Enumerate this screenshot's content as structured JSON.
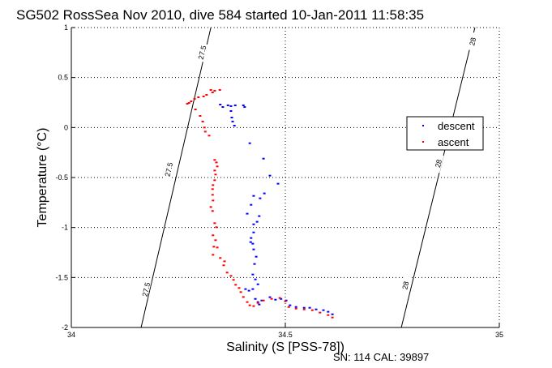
{
  "chart_data": {
    "type": "scatter",
    "title": "SG502 RossSea Nov 2010, dive 584 started 10-Jan-2011 11:58:35",
    "xlabel": "Salinity (S [PSS-78])",
    "ylabel": "Temperature (°C)",
    "xlim": [
      34,
      35
    ],
    "ylim": [
      -2,
      1
    ],
    "xticks": [
      34,
      34.5,
      35
    ],
    "xtick_labels": [
      "34",
      "34.5",
      "35"
    ],
    "yticks": [
      1,
      0.5,
      0,
      -0.5,
      -1,
      -1.5,
      -2
    ],
    "ytick_labels": [
      "1",
      "0.5",
      "0",
      "-0.5",
      "-1",
      "-1.5",
      "-2"
    ],
    "grid": true,
    "legend": {
      "position": "right",
      "entries": [
        "descent",
        "ascent"
      ]
    },
    "footnote": "SN: 114  CAL: 39897",
    "isopycnals": [
      {
        "label": "27.5",
        "points": [
          [
            34.163,
            -2
          ],
          [
            34.326,
            1
          ]
        ],
        "label_positions": [
          [
            34.175,
            -1.62
          ],
          [
            34.228,
            -0.42
          ],
          [
            34.306,
            0.75
          ]
        ]
      },
      {
        "label": "28",
        "points": [
          [
            34.771,
            -2
          ],
          [
            34.943,
            1
          ]
        ],
        "label_positions": [
          [
            34.781,
            -1.58
          ],
          [
            34.858,
            -0.36
          ],
          [
            34.938,
            0.86
          ]
        ]
      }
    ],
    "series": [
      {
        "name": "descent",
        "color": "#0000ff",
        "points": [
          [
            34.348,
            0.23
          ],
          [
            34.354,
            0.205
          ],
          [
            34.366,
            0.222
          ],
          [
            34.373,
            0.214
          ],
          [
            34.383,
            0.222
          ],
          [
            34.402,
            0.222
          ],
          [
            34.405,
            0.205
          ],
          [
            34.373,
            0.165
          ],
          [
            34.375,
            0.1
          ],
          [
            34.377,
            0.06
          ],
          [
            34.381,
            0.019
          ],
          [
            34.417,
            -0.157
          ],
          [
            34.449,
            -0.311
          ],
          [
            34.464,
            -0.481
          ],
          [
            34.483,
            -0.562
          ],
          [
            34.451,
            -0.659
          ],
          [
            34.441,
            -0.708
          ],
          [
            34.426,
            -0.684
          ],
          [
            34.42,
            -0.773
          ],
          [
            34.411,
            -0.862
          ],
          [
            34.426,
            -0.968
          ],
          [
            34.434,
            -0.943
          ],
          [
            34.439,
            -0.886
          ],
          [
            34.426,
            -1.049
          ],
          [
            34.42,
            -1.105
          ],
          [
            34.419,
            -1.146
          ],
          [
            34.424,
            -1.162
          ],
          [
            34.426,
            -1.219
          ],
          [
            34.432,
            -1.292
          ],
          [
            34.428,
            -1.365
          ],
          [
            34.424,
            -1.47
          ],
          [
            34.43,
            -1.519
          ],
          [
            34.436,
            -1.568
          ],
          [
            34.424,
            -1.616
          ],
          [
            34.415,
            -1.632
          ],
          [
            34.407,
            -1.616
          ],
          [
            34.43,
            -1.714
          ],
          [
            34.436,
            -1.746
          ],
          [
            34.439,
            -1.77
          ],
          [
            34.445,
            -1.73
          ],
          [
            34.464,
            -1.697
          ],
          [
            34.477,
            -1.722
          ],
          [
            34.49,
            -1.714
          ],
          [
            34.502,
            -1.73
          ],
          [
            34.511,
            -1.778
          ],
          [
            34.525,
            -1.795
          ],
          [
            34.544,
            -1.803
          ],
          [
            34.557,
            -1.803
          ],
          [
            34.572,
            -1.819
          ],
          [
            34.589,
            -1.827
          ],
          [
            34.6,
            -1.843
          ],
          [
            34.61,
            -1.868
          ]
        ]
      },
      {
        "name": "ascent",
        "color": "#ff0000",
        "points": [
          [
            34.326,
            0.376
          ],
          [
            34.335,
            0.368
          ],
          [
            34.347,
            0.376
          ],
          [
            34.33,
            0.351
          ],
          [
            34.316,
            0.327
          ],
          [
            34.309,
            0.311
          ],
          [
            34.297,
            0.303
          ],
          [
            34.288,
            0.286
          ],
          [
            34.28,
            0.262
          ],
          [
            34.271,
            0.238
          ],
          [
            34.275,
            0.246
          ],
          [
            34.29,
            0.181
          ],
          [
            34.301,
            0.116
          ],
          [
            34.307,
            0.06
          ],
          [
            34.311,
            0.0
          ],
          [
            34.313,
            -0.041
          ],
          [
            34.322,
            -0.081
          ],
          [
            34.335,
            -0.324
          ],
          [
            34.339,
            -0.349
          ],
          [
            34.341,
            -0.389
          ],
          [
            34.335,
            -0.43
          ],
          [
            34.337,
            -0.47
          ],
          [
            34.335,
            -0.527
          ],
          [
            34.331,
            -0.576
          ],
          [
            34.33,
            -0.616
          ],
          [
            34.33,
            -0.673
          ],
          [
            34.331,
            -0.73
          ],
          [
            34.326,
            -0.795
          ],
          [
            34.33,
            -0.835
          ],
          [
            34.335,
            -0.957
          ],
          [
            34.339,
            -0.997
          ],
          [
            34.331,
            -1.078
          ],
          [
            34.337,
            -1.127
          ],
          [
            34.333,
            -1.192
          ],
          [
            34.331,
            -1.273
          ],
          [
            34.341,
            -1.2
          ],
          [
            34.348,
            -1.305
          ],
          [
            34.358,
            -1.338
          ],
          [
            34.356,
            -1.378
          ],
          [
            34.364,
            -1.451
          ],
          [
            34.373,
            -1.484
          ],
          [
            34.379,
            -1.524
          ],
          [
            34.384,
            -1.573
          ],
          [
            34.392,
            -1.605
          ],
          [
            34.396,
            -1.646
          ],
          [
            34.402,
            -1.695
          ],
          [
            34.411,
            -1.746
          ],
          [
            34.417,
            -1.778
          ],
          [
            34.426,
            -1.786
          ],
          [
            34.436,
            -1.754
          ],
          [
            34.449,
            -1.73
          ],
          [
            34.468,
            -1.714
          ],
          [
            34.487,
            -1.705
          ],
          [
            34.5,
            -1.738
          ],
          [
            34.508,
            -1.795
          ],
          [
            34.525,
            -1.811
          ],
          [
            34.544,
            -1.819
          ],
          [
            34.563,
            -1.827
          ],
          [
            34.581,
            -1.851
          ],
          [
            34.6,
            -1.876
          ],
          [
            34.61,
            -1.9
          ]
        ]
      }
    ]
  }
}
